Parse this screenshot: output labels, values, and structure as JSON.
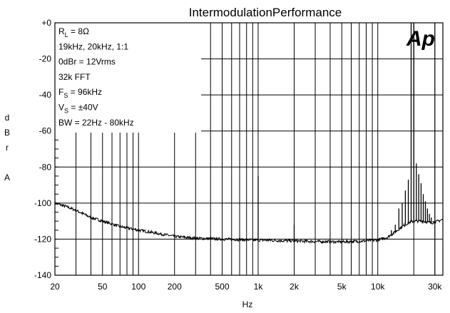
{
  "chart_data": {
    "type": "line",
    "title": "IntermodulationPerformance",
    "xlabel": "Hz",
    "ylabel": [
      "d",
      "B",
      "r",
      "",
      "A"
    ],
    "x_scale": "log",
    "xlim": [
      20,
      35000
    ],
    "ylim": [
      -140,
      0
    ],
    "grid": true,
    "x_ticks": [
      {
        "value": 20,
        "label": "20"
      },
      {
        "value": 50,
        "label": "50"
      },
      {
        "value": 100,
        "label": "100"
      },
      {
        "value": 200,
        "label": "200"
      },
      {
        "value": 500,
        "label": "500"
      },
      {
        "value": 1000,
        "label": "1k"
      },
      {
        "value": 2000,
        "label": "2k"
      },
      {
        "value": 5000,
        "label": "5k"
      },
      {
        "value": 10000,
        "label": "10k"
      },
      {
        "value": 30000,
        "label": "30k"
      }
    ],
    "y_ticks": [
      {
        "value": 0,
        "label": "+0"
      },
      {
        "value": -20,
        "label": "-20"
      },
      {
        "value": -40,
        "label": "-40"
      },
      {
        "value": -60,
        "label": "-60"
      },
      {
        "value": -80,
        "label": "-80"
      },
      {
        "value": -100,
        "label": "-100"
      },
      {
        "value": -120,
        "label": "-120"
      },
      {
        "value": -140,
        "label": "-140"
      }
    ],
    "annotations": [
      {
        "base": "R",
        "sub": "L",
        "rest": " = 8Ω"
      },
      {
        "base": "19kHz, 20kHz, 1:1",
        "sub": "",
        "rest": ""
      },
      {
        "base": "0dBr = 12Vrms",
        "sub": "",
        "rest": ""
      },
      {
        "base": "32k FFT",
        "sub": "",
        "rest": ""
      },
      {
        "base": "F",
        "sub": "S",
        "rest": " = 96kHz"
      },
      {
        "base": "V",
        "sub": "S",
        "rest": " = ±40V"
      },
      {
        "base": "BW = 22Hz - 80kHz",
        "sub": "",
        "rest": ""
      }
    ],
    "logo": "Ap",
    "series": [
      {
        "floor": [
          [
            20,
            -100
          ],
          [
            25,
            -102
          ],
          [
            30,
            -104
          ],
          [
            40,
            -108
          ],
          [
            50,
            -110
          ],
          [
            70,
            -113
          ],
          [
            100,
            -115
          ],
          [
            150,
            -117
          ],
          [
            200,
            -118.5
          ],
          [
            300,
            -119.5
          ],
          [
            500,
            -120
          ],
          [
            700,
            -120.3
          ],
          [
            1000,
            -120.5
          ],
          [
            1500,
            -120.8
          ],
          [
            2000,
            -121
          ],
          [
            3000,
            -121.3
          ],
          [
            5000,
            -121.5
          ],
          [
            7000,
            -121.2
          ],
          [
            10000,
            -120.5
          ],
          [
            12000,
            -119
          ],
          [
            14000,
            -116
          ],
          [
            16000,
            -113
          ],
          [
            18000,
            -111
          ],
          [
            20000,
            -110
          ],
          [
            24000,
            -110
          ],
          [
            28000,
            -111
          ],
          [
            32000,
            -110
          ],
          [
            35000,
            -109
          ]
        ],
        "peaks": [
          [
            1000,
            -85
          ],
          [
            2000,
            -112
          ],
          [
            13000,
            -115
          ],
          [
            14000,
            -112
          ],
          [
            15000,
            -103
          ],
          [
            16000,
            -100
          ],
          [
            17000,
            -93
          ],
          [
            18000,
            -87
          ],
          [
            19000,
            0
          ],
          [
            20000,
            0
          ],
          [
            21000,
            -78
          ],
          [
            22000,
            -84
          ],
          [
            23000,
            -89
          ],
          [
            24000,
            -95
          ],
          [
            25000,
            -99
          ],
          [
            26000,
            -103
          ],
          [
            27000,
            -106
          ],
          [
            28000,
            -108
          ],
          [
            29000,
            -110
          ],
          [
            30000,
            -111
          ]
        ]
      }
    ]
  }
}
